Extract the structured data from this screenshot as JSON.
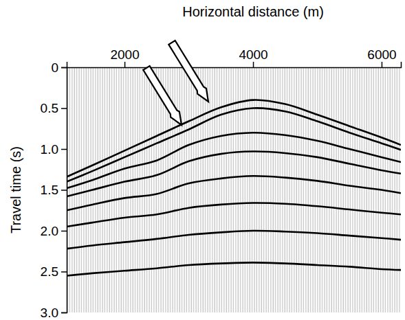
{
  "chart_data": {
    "type": "line",
    "x_label": "Horizontal distance (m)",
    "y_label": "Travel time (s)",
    "xlim": [
      1100,
      6300
    ],
    "xticks": [
      2000,
      4000,
      6000
    ],
    "ylim": [
      0,
      3
    ],
    "yticks": [
      0,
      0.5,
      {
        "value": 1,
        "label": "1.0"
      },
      1.5,
      {
        "value": 2,
        "label": "2.0"
      },
      2.5,
      {
        "value": 3,
        "label": "3.0"
      }
    ],
    "x": [
      1100,
      1500,
      2000,
      2500,
      3000,
      3500,
      4000,
      4500,
      5000,
      5500,
      6000,
      6300
    ],
    "series": [
      {
        "color": "#000000",
        "values": [
          1.34,
          1.2,
          1.02,
          0.84,
          0.66,
          0.49,
          0.4,
          0.45,
          0.58,
          0.72,
          0.86,
          0.95
        ]
      },
      {
        "color": "#000000",
        "values": [
          1.4,
          1.27,
          1.1,
          0.93,
          0.76,
          0.58,
          0.5,
          0.54,
          0.66,
          0.8,
          0.93,
          1.01
        ]
      },
      {
        "color": "#000000",
        "values": [
          1.48,
          1.38,
          1.24,
          1.14,
          0.95,
          0.84,
          0.8,
          0.83,
          0.9,
          1.0,
          1.1,
          1.16
        ]
      },
      {
        "color": "#000000",
        "values": [
          1.58,
          1.5,
          1.4,
          1.32,
          1.15,
          1.06,
          1.03,
          1.05,
          1.1,
          1.18,
          1.26,
          1.3
        ]
      },
      {
        "color": "#000000",
        "values": [
          1.75,
          1.68,
          1.6,
          1.55,
          1.42,
          1.36,
          1.33,
          1.35,
          1.39,
          1.45,
          1.5,
          1.54
        ]
      },
      {
        "color": "#000000",
        "values": [
          1.95,
          1.9,
          1.84,
          1.8,
          1.72,
          1.68,
          1.66,
          1.67,
          1.7,
          1.74,
          1.78,
          1.8
        ]
      },
      {
        "color": "#000000",
        "values": [
          2.22,
          2.18,
          2.14,
          2.1,
          2.05,
          2.02,
          2.0,
          2.01,
          2.03,
          2.06,
          2.09,
          2.11
        ]
      },
      {
        "color": "#000000",
        "values": [
          2.55,
          2.52,
          2.49,
          2.46,
          2.42,
          2.4,
          2.39,
          2.4,
          2.42,
          2.44,
          2.47,
          2.48
        ]
      }
    ]
  }
}
